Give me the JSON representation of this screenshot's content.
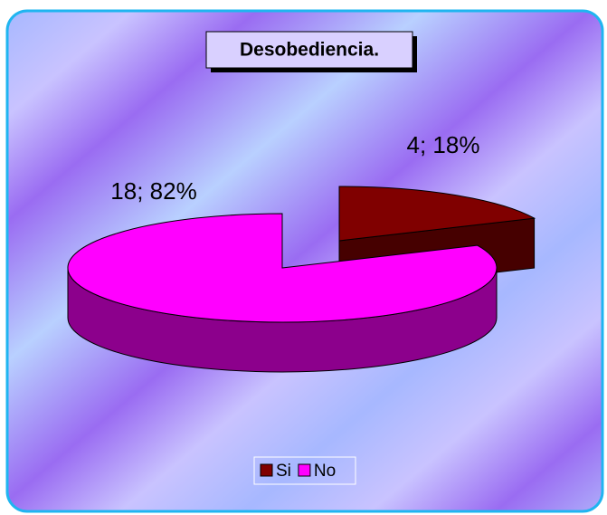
{
  "chart_data": {
    "type": "pie",
    "title": "Desobediencia.",
    "categories": [
      "Si",
      "No"
    ],
    "values": [
      4,
      18
    ],
    "value_labels": [
      "4; 18%",
      "18; 82%"
    ],
    "colors": [
      "#800000",
      "#ff00ff"
    ],
    "legend": "bottom"
  }
}
